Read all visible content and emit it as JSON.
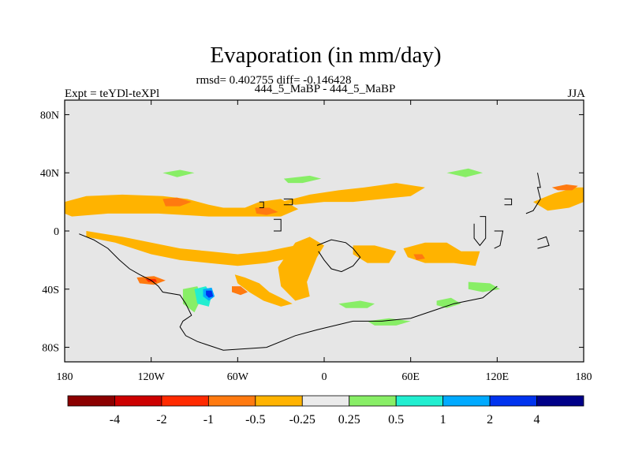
{
  "chart_data": {
    "type": "heatmap",
    "title": "Evaporation (in mm/day)",
    "stats_line": "rmsd= 0.402755 diff= -0.146428",
    "subtitle": "444_5_MaBP - 444_5_MaBP",
    "left_label": "Expt = teYDl-teXPl",
    "right_label": "JJA",
    "projection": "cylindrical equidistant",
    "xlim": [
      -180,
      180
    ],
    "ylim": [
      -90,
      90
    ],
    "x_ticks": [
      {
        "value": -180,
        "label": "180"
      },
      {
        "value": -120,
        "label": "120W"
      },
      {
        "value": -60,
        "label": "60W"
      },
      {
        "value": 0,
        "label": "0"
      },
      {
        "value": 60,
        "label": "60E"
      },
      {
        "value": 120,
        "label": "120E"
      },
      {
        "value": 180,
        "label": "180"
      }
    ],
    "y_ticks": [
      {
        "value": 80,
        "label": "80N"
      },
      {
        "value": 40,
        "label": "40N"
      },
      {
        "value": 0,
        "label": "0"
      },
      {
        "value": -40,
        "label": "40S"
      },
      {
        "value": -80,
        "label": "80S"
      }
    ],
    "colorbar": {
      "levels": [
        "-4",
        "-2",
        "-1",
        "-0.5",
        "-0.25",
        "0.25",
        "0.5",
        "1",
        "2",
        "4"
      ],
      "colors": [
        "#8b0000",
        "#cc0000",
        "#ff2a00",
        "#ff7a10",
        "#ffb300",
        "#ebebeb",
        "#88ee66",
        "#22eed0",
        "#00aaff",
        "#0033ee",
        "#000088"
      ]
    },
    "regions": [
      {
        "name": "n-pacific-orange",
        "level": -0.5,
        "points": [
          [
            -180,
            20
          ],
          [
            -165,
            24
          ],
          [
            -140,
            25
          ],
          [
            -112,
            24
          ],
          [
            -95,
            22
          ],
          [
            -80,
            18
          ],
          [
            -70,
            16
          ],
          [
            -55,
            16
          ],
          [
            -45,
            20
          ],
          [
            -30,
            22
          ],
          [
            -18,
            15
          ],
          [
            -30,
            10
          ],
          [
            -55,
            10
          ],
          [
            -80,
            10
          ],
          [
            -115,
            12
          ],
          [
            -150,
            12
          ],
          [
            -175,
            10
          ],
          [
            -180,
            12
          ]
        ]
      },
      {
        "name": "s-pacific-band-orange",
        "level": -0.5,
        "points": [
          [
            -165,
            0
          ],
          [
            -140,
            -4
          ],
          [
            -120,
            -8
          ],
          [
            -100,
            -12
          ],
          [
            -80,
            -14
          ],
          [
            -60,
            -16
          ],
          [
            -40,
            -14
          ],
          [
            -20,
            -10
          ],
          [
            -5,
            -10
          ],
          [
            -5,
            -14
          ],
          [
            -20,
            -18
          ],
          [
            -40,
            -22
          ],
          [
            -60,
            -24
          ],
          [
            -80,
            -22
          ],
          [
            -100,
            -20
          ],
          [
            -120,
            -16
          ],
          [
            -145,
            -8
          ],
          [
            -165,
            -4
          ]
        ]
      },
      {
        "name": "atlantic-east-orange",
        "level": -0.5,
        "points": [
          [
            -25,
            -15
          ],
          [
            -20,
            -8
          ],
          [
            -10,
            -4
          ],
          [
            0,
            -10
          ],
          [
            -5,
            -18
          ],
          [
            -12,
            -35
          ],
          [
            -10,
            -45
          ],
          [
            -20,
            -48
          ],
          [
            -30,
            -38
          ],
          [
            -32,
            -25
          ]
        ]
      },
      {
        "name": "s-america-coast-orange",
        "level": -0.5,
        "points": [
          [
            -62,
            -30
          ],
          [
            -55,
            -32
          ],
          [
            -45,
            -36
          ],
          [
            -38,
            -42
          ],
          [
            -30,
            -46
          ],
          [
            -22,
            -50
          ],
          [
            -30,
            -52
          ],
          [
            -42,
            -48
          ],
          [
            -52,
            -42
          ],
          [
            -60,
            -36
          ]
        ]
      },
      {
        "name": "n-atlantic-orange",
        "level": -0.5,
        "points": [
          [
            -30,
            20
          ],
          [
            -10,
            25
          ],
          [
            10,
            28
          ],
          [
            28,
            30
          ],
          [
            50,
            33
          ],
          [
            70,
            30
          ],
          [
            60,
            24
          ],
          [
            40,
            22
          ],
          [
            20,
            20
          ],
          [
            0,
            20
          ],
          [
            -20,
            18
          ]
        ]
      },
      {
        "name": "indian-ocean-orange",
        "level": -0.5,
        "points": [
          [
            55,
            -12
          ],
          [
            70,
            -8
          ],
          [
            85,
            -8
          ],
          [
            95,
            -14
          ],
          [
            108,
            -14
          ],
          [
            105,
            -24
          ],
          [
            90,
            -22
          ],
          [
            70,
            -22
          ],
          [
            58,
            -18
          ]
        ]
      },
      {
        "name": "indian-ocean-west-orange",
        "level": -0.5,
        "points": [
          [
            20,
            -10
          ],
          [
            35,
            -10
          ],
          [
            50,
            -14
          ],
          [
            45,
            -22
          ],
          [
            30,
            -22
          ],
          [
            20,
            -16
          ]
        ]
      },
      {
        "name": "w-pacific-orange",
        "level": -0.5,
        "points": [
          [
            145,
            20
          ],
          [
            160,
            26
          ],
          [
            175,
            30
          ],
          [
            180,
            30
          ],
          [
            180,
            20
          ],
          [
            170,
            16
          ],
          [
            155,
            14
          ]
        ]
      },
      {
        "name": "red-spot-npac",
        "level": -1,
        "points": [
          [
            -112,
            22
          ],
          [
            -102,
            23
          ],
          [
            -92,
            20
          ],
          [
            -100,
            17
          ],
          [
            -110,
            17
          ]
        ]
      },
      {
        "name": "red-spot-natl",
        "level": -1,
        "points": [
          [
            -48,
            16
          ],
          [
            -38,
            16
          ],
          [
            -32,
            13
          ],
          [
            -40,
            11
          ],
          [
            -47,
            12
          ]
        ]
      },
      {
        "name": "red-spot-sam-1",
        "level": -1,
        "points": [
          [
            -130,
            -32
          ],
          [
            -118,
            -31
          ],
          [
            -110,
            -34
          ],
          [
            -118,
            -37
          ],
          [
            -128,
            -36
          ]
        ]
      },
      {
        "name": "red-spot-sam-2",
        "level": -1,
        "points": [
          [
            -64,
            -38
          ],
          [
            -58,
            -38
          ],
          [
            -53,
            -42
          ],
          [
            -58,
            -44
          ],
          [
            -64,
            -42
          ]
        ]
      },
      {
        "name": "red-spot-wpac",
        "level": -1,
        "points": [
          [
            158,
            30
          ],
          [
            168,
            32
          ],
          [
            176,
            31
          ],
          [
            172,
            28
          ],
          [
            162,
            28
          ]
        ]
      },
      {
        "name": "red-spot-io",
        "level": -1,
        "points": [
          [
            62,
            -16
          ],
          [
            68,
            -16
          ],
          [
            70,
            -19
          ],
          [
            64,
            -20
          ]
        ]
      },
      {
        "name": "dark-red-spot-sam",
        "level": -2,
        "points": [
          [
            -124,
            -33
          ],
          [
            -117,
            -33
          ],
          [
            -116,
            -35
          ],
          [
            -122,
            -35
          ]
        ]
      },
      {
        "name": "green-npac-1",
        "level": 0.25,
        "points": [
          [
            -112,
            40
          ],
          [
            -100,
            42
          ],
          [
            -90,
            40
          ],
          [
            -102,
            37
          ]
        ]
      },
      {
        "name": "green-npac-2",
        "level": 0.25,
        "points": [
          [
            -28,
            36
          ],
          [
            -10,
            38
          ],
          [
            -2,
            36
          ],
          [
            -15,
            33
          ],
          [
            -25,
            33
          ]
        ]
      },
      {
        "name": "green-arabian",
        "level": 0.25,
        "points": [
          [
            85,
            40
          ],
          [
            100,
            43
          ],
          [
            110,
            40
          ],
          [
            98,
            37
          ]
        ]
      },
      {
        "name": "green-south-1",
        "level": 0.25,
        "points": [
          [
            10,
            -50
          ],
          [
            25,
            -48
          ],
          [
            35,
            -50
          ],
          [
            30,
            -53
          ],
          [
            15,
            -53
          ]
        ]
      },
      {
        "name": "green-south-2",
        "level": 0.25,
        "points": [
          [
            78,
            -48
          ],
          [
            88,
            -46
          ],
          [
            95,
            -50
          ],
          [
            85,
            -53
          ],
          [
            78,
            -51
          ]
        ]
      },
      {
        "name": "green-south-3",
        "level": 0.25,
        "points": [
          [
            30,
            -62
          ],
          [
            45,
            -60
          ],
          [
            60,
            -62
          ],
          [
            50,
            -65
          ],
          [
            35,
            -65
          ]
        ]
      },
      {
        "name": "green-sam",
        "level": 0.25,
        "points": [
          [
            -98,
            -40
          ],
          [
            -88,
            -38
          ],
          [
            -85,
            -46
          ],
          [
            -90,
            -56
          ],
          [
            -98,
            -50
          ]
        ]
      },
      {
        "name": "green-east-io",
        "level": 0.25,
        "points": [
          [
            100,
            -35
          ],
          [
            115,
            -36
          ],
          [
            122,
            -40
          ],
          [
            110,
            -42
          ],
          [
            100,
            -40
          ]
        ]
      },
      {
        "name": "cyan-sam",
        "level": 0.5,
        "points": [
          [
            -90,
            -40
          ],
          [
            -82,
            -38
          ],
          [
            -78,
            -44
          ],
          [
            -80,
            -52
          ],
          [
            -88,
            -50
          ]
        ]
      },
      {
        "name": "blue-sam",
        "level": 1,
        "points": [
          [
            -84,
            -40
          ],
          [
            -78,
            -39
          ],
          [
            -76,
            -45
          ],
          [
            -80,
            -48
          ],
          [
            -84,
            -45
          ]
        ]
      },
      {
        "name": "navy-sam",
        "level": 2,
        "points": [
          [
            -82,
            -41
          ],
          [
            -78,
            -41
          ],
          [
            -77,
            -45
          ],
          [
            -80,
            -46
          ],
          [
            -82,
            -44
          ]
        ]
      }
    ],
    "land_outlines": [
      {
        "name": "south-america",
        "points": [
          [
            -170,
            -2
          ],
          [
            -160,
            -6
          ],
          [
            -150,
            -12
          ],
          [
            -142,
            -20
          ],
          [
            -135,
            -26
          ],
          [
            -128,
            -30
          ],
          [
            -120,
            -34
          ],
          [
            -115,
            -38
          ],
          [
            -112,
            -42
          ],
          [
            -100,
            -44
          ],
          [
            -96,
            -50
          ],
          [
            -92,
            -58
          ],
          [
            -98,
            -62
          ],
          [
            -100,
            -66
          ],
          [
            -96,
            -72
          ],
          [
            -88,
            -76
          ],
          [
            -82,
            -78
          ],
          [
            -70,
            -82
          ],
          [
            -40,
            -80
          ],
          [
            -20,
            -72
          ],
          [
            -5,
            -68
          ],
          [
            20,
            -62
          ],
          [
            40,
            -62
          ],
          [
            60,
            -60
          ],
          [
            78,
            -54
          ],
          [
            90,
            -50
          ],
          [
            100,
            -48
          ],
          [
            110,
            -46
          ],
          [
            120,
            -38
          ]
        ]
      },
      {
        "name": "africa-like",
        "points": [
          [
            -5,
            -10
          ],
          [
            5,
            -6
          ],
          [
            15,
            -8
          ],
          [
            20,
            -12
          ],
          [
            25,
            -18
          ],
          [
            20,
            -24
          ],
          [
            12,
            -28
          ],
          [
            5,
            -26
          ],
          [
            0,
            -20
          ],
          [
            -4,
            -14
          ]
        ]
      },
      {
        "name": "island-npac",
        "points": [
          [
            -45,
            20
          ],
          [
            -42,
            20
          ],
          [
            -42,
            16
          ],
          [
            -45,
            16
          ]
        ]
      },
      {
        "name": "island-nam",
        "points": [
          [
            -35,
            8
          ],
          [
            -30,
            8
          ],
          [
            -30,
            0
          ],
          [
            -35,
            0
          ]
        ]
      },
      {
        "name": "india-like",
        "points": [
          [
            108,
            10
          ],
          [
            112,
            10
          ],
          [
            112,
            -5
          ],
          [
            108,
            -10
          ],
          [
            104,
            -5
          ],
          [
            104,
            5
          ]
        ]
      },
      {
        "name": "east-island",
        "points": [
          [
            118,
            0
          ],
          [
            124,
            0
          ],
          [
            122,
            -10
          ],
          [
            118,
            -12
          ]
        ]
      },
      {
        "name": "east-coast",
        "points": [
          [
            140,
            12
          ],
          [
            145,
            14
          ],
          [
            150,
            22
          ],
          [
            148,
            30
          ],
          [
            150,
            30
          ],
          [
            148,
            40
          ]
        ]
      },
      {
        "name": "se-island",
        "points": [
          [
            148,
            -12
          ],
          [
            156,
            -10
          ],
          [
            154,
            -4
          ],
          [
            148,
            -6
          ]
        ]
      },
      {
        "name": "n-small-island",
        "points": [
          [
            125,
            22
          ],
          [
            130,
            22
          ],
          [
            130,
            18
          ],
          [
            125,
            18
          ]
        ]
      },
      {
        "name": "n-small-island-2",
        "points": [
          [
            -28,
            22
          ],
          [
            -22,
            22
          ],
          [
            -22,
            18
          ],
          [
            -28,
            18
          ]
        ]
      }
    ]
  }
}
